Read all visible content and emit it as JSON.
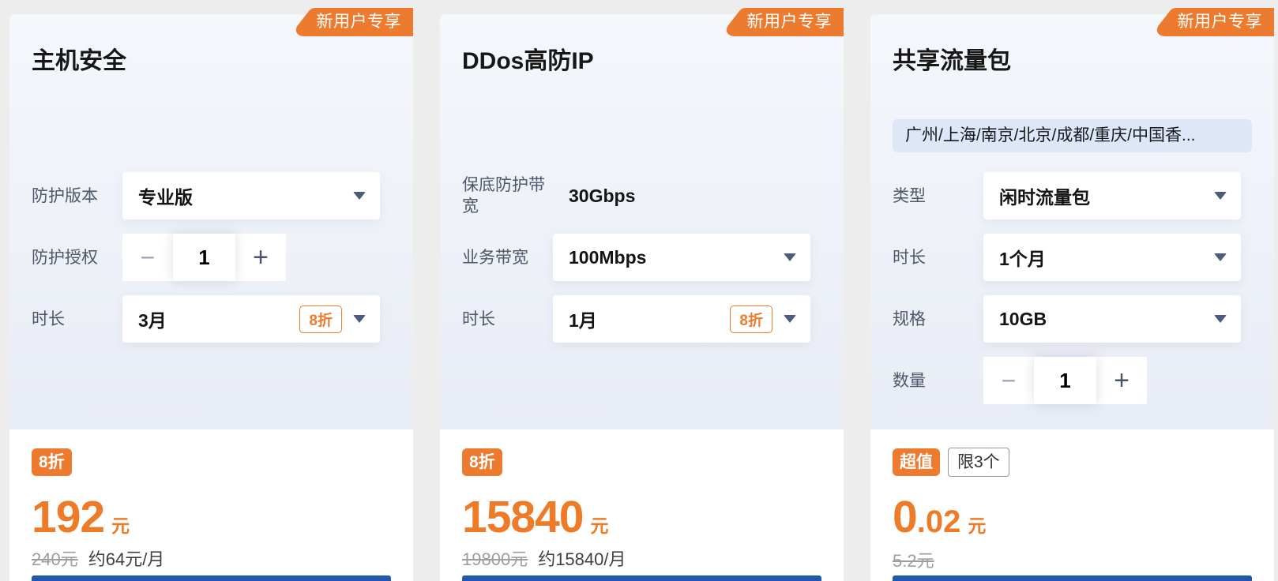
{
  "page": {
    "background": "#ededee",
    "accent_orange": "#ed7b2f",
    "buy_bar_color": "#2357aa"
  },
  "ribbon_label": "新用户专享",
  "icons": {
    "minus": "−",
    "plus": "+",
    "caret": "caret-down-icon"
  },
  "cards": [
    {
      "title": "主机安全",
      "rows": [
        {
          "label": "防护版本",
          "value": "专业版"
        },
        {
          "label": "防护授权",
          "value": "1"
        },
        {
          "label": "时长",
          "value": "3月",
          "discount": "8折"
        }
      ],
      "price": {
        "badge": "8折",
        "int": "192",
        "unit": "元",
        "original": "240元",
        "approx": "约64元/月"
      }
    },
    {
      "title": "DDos高防IP",
      "rows": [
        {
          "label": "保底防护带宽",
          "value": "30Gbps"
        },
        {
          "label": "业务带宽",
          "value": "100Mbps"
        },
        {
          "label": "时长",
          "value": "1月",
          "discount": "8折"
        }
      ],
      "price": {
        "badge": "8折",
        "int": "15840",
        "unit": "元",
        "original": "19800元",
        "approx": "约15840/月"
      }
    },
    {
      "title": "共享流量包",
      "region_tag": "广州/上海/南京/北京/成都/重庆/中国香...",
      "rows": [
        {
          "label": "类型",
          "value": "闲时流量包"
        },
        {
          "label": "时长",
          "value": "1个月"
        },
        {
          "label": "规格",
          "value": "10GB"
        },
        {
          "label": "数量",
          "value": "1"
        }
      ],
      "price": {
        "badge": "超值",
        "limit": "限3个",
        "int": "0",
        "dec": ".02",
        "unit": "元",
        "original": "5.2元"
      }
    }
  ]
}
